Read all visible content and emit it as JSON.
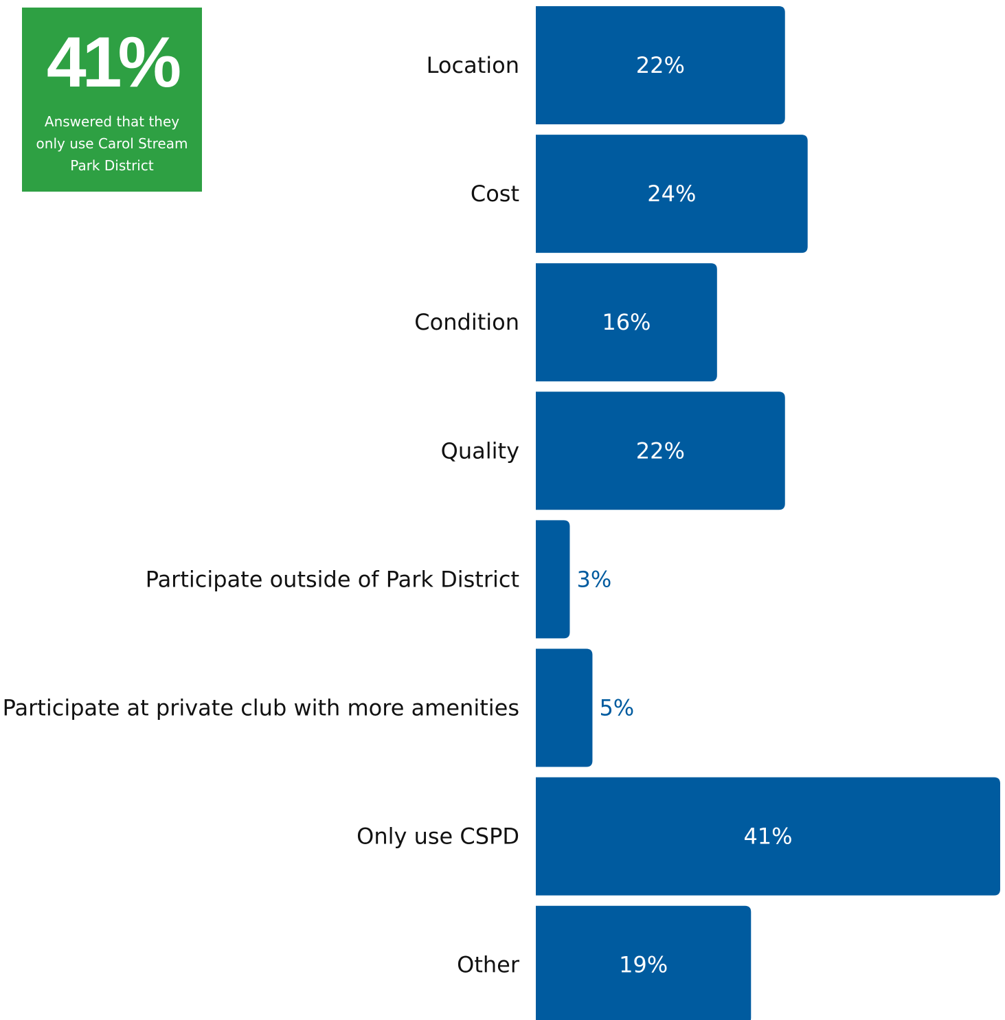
{
  "callout": {
    "value": "41%",
    "caption": "Answered that they only use Carol Stream Park District"
  },
  "colors": {
    "bar": "#005b9f",
    "callout_bg": "#2ea043",
    "label_inside": "#ffffff",
    "label_outside": "#005b9f"
  },
  "chart_data": {
    "type": "bar",
    "orientation": "horizontal",
    "categories": [
      "Location",
      "Cost",
      "Condition",
      "Quality",
      "Participate outside of Park District",
      "Participate at private club with more amenities",
      "Only use CSPD",
      "Other"
    ],
    "values": [
      22,
      24,
      16,
      22,
      3,
      5,
      41,
      19
    ],
    "value_labels": [
      "22%",
      "24%",
      "16%",
      "22%",
      "3%",
      "5%",
      "41%",
      "19%"
    ],
    "value_unit": "%",
    "xlim": [
      0,
      41
    ],
    "grid": false,
    "legend": "none"
  }
}
